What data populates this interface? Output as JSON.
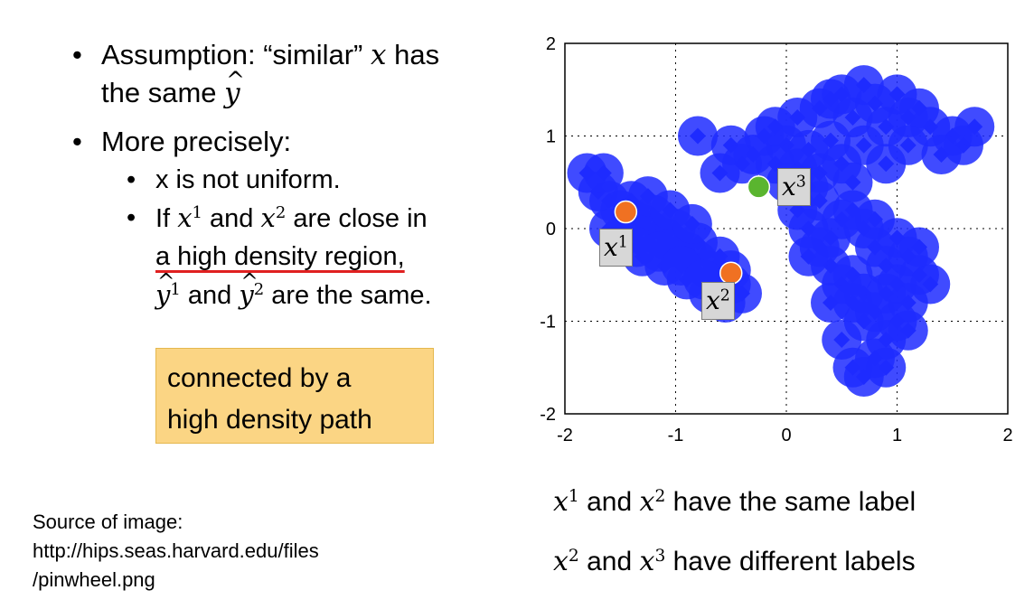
{
  "bullets": {
    "assumption_prefix": "Assumption: “similar”",
    "assumption_x": "x",
    "assumption_mid": "has",
    "assumption_line2": "the same",
    "assumption_y": "y",
    "precise": "More precisely:",
    "sub1": "x is not uniform.",
    "sub2_if": "If",
    "sub2_and": "and",
    "sub2_close": "are close in",
    "sub2_region": "a high density region,",
    "sub2_and2": "and",
    "sub2_same": "are the same."
  },
  "note": {
    "line1": "connected by a",
    "line2": "high density path"
  },
  "source": {
    "line1": "Source of image:",
    "line2": "http://hips.seas.harvard.edu/files",
    "line3": "/pinwheel.png"
  },
  "captions": {
    "cap1_and": "and",
    "cap1_rest": "have the same label",
    "cap2_and": "and",
    "cap2_rest": "have different labels"
  },
  "math": {
    "x": "x",
    "y": "y",
    "sup1": "1",
    "sup2": "2",
    "sup3": "3"
  },
  "chart_data": {
    "type": "scatter",
    "xlim": [
      -2,
      2
    ],
    "ylim": [
      -2,
      2
    ],
    "xticks": [
      "-2",
      "-1",
      "0",
      "1",
      "2"
    ],
    "yticks": [
      "-2",
      "-1",
      "0",
      "1",
      "2"
    ],
    "grid": "dotted",
    "marker_color": "#1f2bff",
    "clusters": [
      {
        "points": [
          [
            -1.6,
            0.3
          ],
          [
            -1.5,
            0.2
          ],
          [
            -1.4,
            0.1
          ],
          [
            -1.3,
            0.05
          ],
          [
            -1.2,
            -0.05
          ],
          [
            -1.1,
            -0.1
          ],
          [
            -1.0,
            -0.2
          ],
          [
            -0.9,
            -0.25
          ],
          [
            -0.8,
            -0.35
          ],
          [
            -0.7,
            -0.45
          ],
          [
            -0.6,
            -0.55
          ],
          [
            -0.5,
            -0.6
          ],
          [
            -0.4,
            -0.7
          ],
          [
            -1.7,
            0.4
          ],
          [
            -1.5,
            -0.1
          ],
          [
            -1.3,
            -0.3
          ],
          [
            -1.1,
            -0.4
          ],
          [
            -0.9,
            -0.55
          ],
          [
            -0.7,
            -0.7
          ],
          [
            -1.4,
            0.3
          ],
          [
            -1.2,
            0.15
          ],
          [
            -1.0,
            0.0
          ],
          [
            -0.8,
            -0.15
          ],
          [
            -0.6,
            -0.3
          ],
          [
            -0.5,
            -0.45
          ],
          [
            -1.6,
            0.0
          ],
          [
            -1.35,
            -0.2
          ],
          [
            -1.15,
            -0.25
          ],
          [
            -0.95,
            -0.4
          ],
          [
            -0.75,
            -0.55
          ],
          [
            -0.55,
            -0.8
          ],
          [
            -1.8,
            0.6
          ],
          [
            -1.65,
            0.6
          ],
          [
            -1.25,
            0.35
          ],
          [
            -1.05,
            0.2
          ],
          [
            -0.85,
            0.05
          ]
        ]
      },
      {
        "points": [
          [
            -0.5,
            0.9
          ],
          [
            -0.3,
            0.8
          ],
          [
            -0.1,
            0.7
          ],
          [
            0.1,
            0.65
          ],
          [
            0.3,
            0.6
          ],
          [
            0.5,
            0.7
          ],
          [
            0.7,
            0.9
          ],
          [
            0.9,
            1.1
          ],
          [
            1.1,
            1.2
          ],
          [
            1.3,
            1.1
          ],
          [
            1.5,
            1.0
          ],
          [
            1.6,
            0.9
          ],
          [
            -0.2,
            1.0
          ],
          [
            0.0,
            0.9
          ],
          [
            0.2,
            0.85
          ],
          [
            0.4,
            0.95
          ],
          [
            0.6,
            1.2
          ],
          [
            0.8,
            1.35
          ],
          [
            1.0,
            1.45
          ],
          [
            0.7,
            1.55
          ],
          [
            0.5,
            1.45
          ],
          [
            0.3,
            1.3
          ],
          [
            0.1,
            1.2
          ],
          [
            -0.1,
            1.1
          ],
          [
            -0.4,
            0.7
          ],
          [
            -0.6,
            0.6
          ],
          [
            0.0,
            0.5
          ],
          [
            0.2,
            0.45
          ],
          [
            1.2,
            1.3
          ],
          [
            1.4,
            0.8
          ],
          [
            0.9,
            0.7
          ],
          [
            1.1,
            0.9
          ],
          [
            -0.8,
            1.0
          ],
          [
            0.4,
            1.4
          ],
          [
            0.6,
            0.5
          ],
          [
            1.7,
            1.1
          ]
        ]
      },
      {
        "points": [
          [
            0.8,
            -1.4
          ],
          [
            0.9,
            -1.2
          ],
          [
            0.7,
            -1.0
          ],
          [
            0.6,
            -0.8
          ],
          [
            0.5,
            -0.6
          ],
          [
            0.4,
            -0.4
          ],
          [
            0.3,
            -0.2
          ],
          [
            0.2,
            0.0
          ],
          [
            0.1,
            0.2
          ],
          [
            1.0,
            -1.0
          ],
          [
            1.1,
            -0.8
          ],
          [
            1.0,
            -0.6
          ],
          [
            0.9,
            -0.4
          ],
          [
            0.8,
            -0.2
          ],
          [
            0.7,
            0.0
          ],
          [
            0.6,
            0.2
          ],
          [
            0.5,
            0.1
          ],
          [
            0.4,
            -0.1
          ],
          [
            0.6,
            -0.5
          ],
          [
            0.7,
            -0.7
          ],
          [
            0.8,
            -0.9
          ],
          [
            0.9,
            -0.7
          ],
          [
            1.2,
            -0.5
          ],
          [
            1.1,
            -0.3
          ],
          [
            1.0,
            -0.1
          ],
          [
            0.3,
            0.3
          ],
          [
            0.5,
            -1.2
          ],
          [
            0.6,
            -1.5
          ],
          [
            0.7,
            -1.6
          ],
          [
            1.3,
            -0.6
          ],
          [
            1.2,
            -0.2
          ],
          [
            0.2,
            -0.3
          ],
          [
            0.4,
            -0.8
          ],
          [
            0.8,
            0.1
          ],
          [
            0.9,
            -1.5
          ],
          [
            1.1,
            -1.1
          ]
        ]
      }
    ],
    "highlighted": [
      {
        "name": "x1",
        "x": -1.45,
        "y": 0.18,
        "color": "#f07122"
      },
      {
        "name": "x2",
        "x": -0.5,
        "y": -0.48,
        "color": "#f07122"
      },
      {
        "name": "x3",
        "x": -0.25,
        "y": 0.45,
        "color": "#5ab52f"
      }
    ]
  }
}
